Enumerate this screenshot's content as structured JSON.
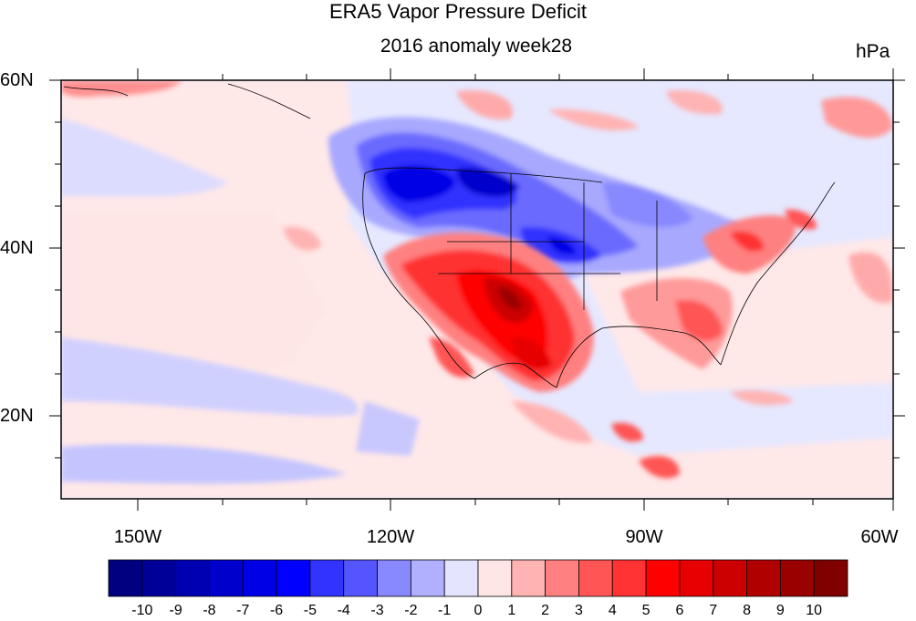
{
  "title": "ERA5 Vapor Pressure Deficit",
  "subtitle": "2016 anomaly week28",
  "units": "hPa",
  "lat_labels": [
    "60N",
    "40N",
    "20N"
  ],
  "lon_labels": [
    "150W",
    "120W",
    "90W",
    "60W"
  ],
  "colorbar": {
    "labels": [
      "-10",
      "-9",
      "-8",
      "-7",
      "-6",
      "-5",
      "-4",
      "-3",
      "-2",
      "-1",
      "0",
      "1",
      "2",
      "3",
      "4",
      "5",
      "6",
      "7",
      "8",
      "9",
      "10"
    ],
    "colors": [
      "#000080",
      "#000099",
      "#0000b3",
      "#0000cc",
      "#0000e6",
      "#0000ff",
      "#3333ff",
      "#5555ff",
      "#8888ff",
      "#b0b0ff",
      "#e4e4ff",
      "#ffe6e6",
      "#ffb3b3",
      "#ff8080",
      "#ff5555",
      "#ff3333",
      "#ff0000",
      "#e60000",
      "#cc0000",
      "#b00000",
      "#990000",
      "#800000"
    ]
  },
  "map": {
    "projection": "cylindrical equidistant",
    "lon_range": [
      -159,
      -60
    ],
    "lat_range": [
      10,
      60
    ],
    "field": "vapor pressure deficit anomaly",
    "background_color": "#e6e8ff"
  }
}
